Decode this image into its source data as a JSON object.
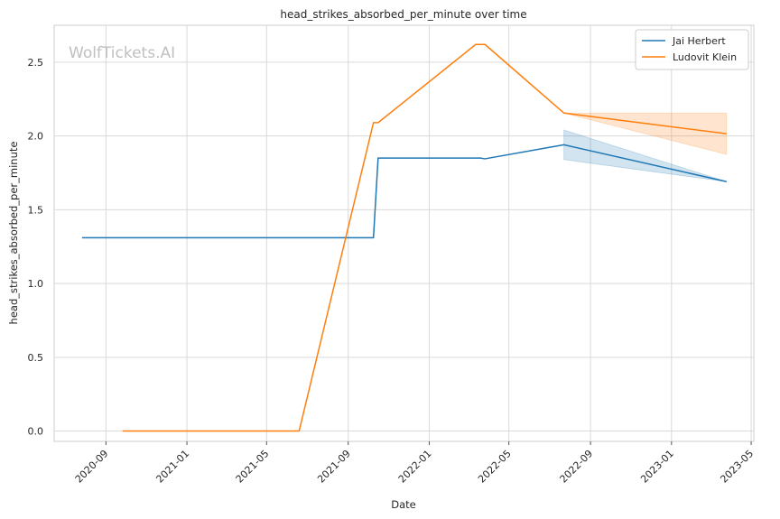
{
  "chart_data": {
    "type": "line",
    "title": "head_strikes_absorbed_per_minute over time",
    "xlabel": "Date",
    "ylabel": "head_strikes_absorbed_per_minute",
    "watermark": "WolfTickets.AI",
    "x_ticks": [
      "2020-09",
      "2021-01",
      "2021-05",
      "2021-09",
      "2022-01",
      "2022-05",
      "2022-09",
      "2023-01",
      "2023-05"
    ],
    "y_ticks": [
      "0.0",
      "0.5",
      "1.0",
      "1.5",
      "2.0",
      "2.5"
    ],
    "xlim": [
      "2020-06-15",
      "2023-05-05"
    ],
    "ylim": [
      -0.07,
      2.75
    ],
    "grid": true,
    "legend_position": "top-right",
    "series": [
      {
        "name": "Jai Herbert",
        "color": "#1f77b4",
        "points": [
          [
            "2020-07-27",
            1.31
          ],
          [
            "2021-10-09",
            1.31
          ],
          [
            "2021-10-16",
            1.85
          ],
          [
            "2022-03-19",
            1.85
          ],
          [
            "2022-03-26",
            1.845
          ],
          [
            "2022-07-23",
            1.94
          ],
          [
            "2023-03-25",
            1.69
          ]
        ],
        "band": [
          [
            "2022-07-23",
            1.84,
            2.04
          ],
          [
            "2023-03-25",
            1.69,
            1.69
          ]
        ]
      },
      {
        "name": "Ludovit Klein",
        "color": "#ff7f0e",
        "points": [
          [
            "2020-09-26",
            0.0
          ],
          [
            "2021-06-19",
            0.0
          ],
          [
            "2021-10-09",
            2.09
          ],
          [
            "2021-10-16",
            2.09
          ],
          [
            "2022-03-12",
            2.62
          ],
          [
            "2022-03-26",
            2.62
          ],
          [
            "2022-07-23",
            2.155
          ],
          [
            "2023-03-25",
            2.015
          ]
        ],
        "band": [
          [
            "2022-07-23",
            2.155,
            2.155
          ],
          [
            "2023-03-25",
            1.875,
            2.155
          ]
        ]
      }
    ]
  }
}
